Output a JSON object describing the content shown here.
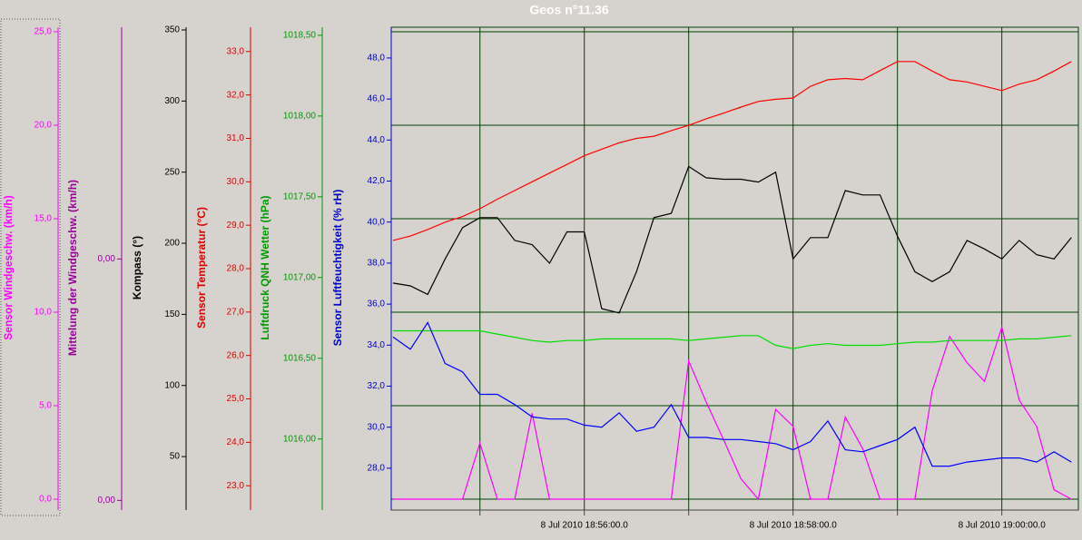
{
  "chart_data": {
    "type": "line",
    "title": "Geos n°11.36",
    "grid": true,
    "grid_axis": 0,
    "xlim": [
      "2010-07-08 18:54:09",
      "2010-07-08 19:00:44"
    ],
    "xticks": [
      {
        "value": "2010-07-08 18:55:00",
        "label": null
      },
      {
        "value": "2010-07-08 18:56:00",
        "label": "8 Jul 2010 18:56:00.0"
      },
      {
        "value": "2010-07-08 18:57:00",
        "label": null
      },
      {
        "value": "2010-07-08 18:58:00",
        "label": "8 Jul 2010 18:58:00.0"
      },
      {
        "value": "2010-07-08 18:59:00",
        "label": null
      },
      {
        "value": "2010-07-08 19:00:00",
        "label": "8 Jul 2010 19:00:00.0"
      }
    ],
    "x": [
      "2010-07-08 18:54:10",
      "2010-07-08 18:54:20",
      "2010-07-08 18:54:30",
      "2010-07-08 18:54:40",
      "2010-07-08 18:54:50",
      "2010-07-08 18:55:00",
      "2010-07-08 18:55:10",
      "2010-07-08 18:55:20",
      "2010-07-08 18:55:30",
      "2010-07-08 18:55:40",
      "2010-07-08 18:55:50",
      "2010-07-08 18:56:00",
      "2010-07-08 18:56:10",
      "2010-07-08 18:56:20",
      "2010-07-08 18:56:30",
      "2010-07-08 18:56:40",
      "2010-07-08 18:56:50",
      "2010-07-08 18:57:00",
      "2010-07-08 18:57:10",
      "2010-07-08 18:57:20",
      "2010-07-08 18:57:30",
      "2010-07-08 18:57:40",
      "2010-07-08 18:57:50",
      "2010-07-08 18:58:00",
      "2010-07-08 18:58:10",
      "2010-07-08 18:58:20",
      "2010-07-08 18:58:30",
      "2010-07-08 18:58:40",
      "2010-07-08 18:58:50",
      "2010-07-08 18:59:00",
      "2010-07-08 18:59:10",
      "2010-07-08 18:59:20",
      "2010-07-08 18:59:30",
      "2010-07-08 18:59:40",
      "2010-07-08 18:59:50",
      "2010-07-08 19:00:00",
      "2010-07-08 19:00:10",
      "2010-07-08 19:00:20",
      "2010-07-08 19:00:30",
      "2010-07-08 19:00:40"
    ],
    "axes": [
      {
        "name": "Sensor Windgeschw. (km/h)",
        "color": "#ff00ff",
        "ylim": [
          -0.58,
          25.24
        ],
        "yticks": [
          {
            "value": 0,
            "label": "0,0"
          },
          {
            "value": 5,
            "label": "5,0"
          },
          {
            "value": 10,
            "label": "10,0"
          },
          {
            "value": 15,
            "label": "15,0"
          },
          {
            "value": 20,
            "label": "20,0"
          },
          {
            "value": 25,
            "label": "25,0"
          }
        ]
      },
      {
        "name": "Mittelung der Windgeschw. (km/h)",
        "color": "#990099",
        "ylim": [
          -0.005,
          0.005
        ],
        "yticks": [
          {
            "value": -0.0048,
            "label": "0,00"
          },
          {
            "value": 0.0002,
            "label": "0,00"
          }
        ]
      },
      {
        "name": "Kompass (°)",
        "color": "#000000",
        "ylim": [
          12.4,
          351.9
        ],
        "yticks": [
          50,
          100,
          150,
          200,
          250,
          300,
          350
        ]
      },
      {
        "name": "Sensor Temperatur (°C)",
        "color": "#e00000",
        "ylim": [
          22.44,
          33.56
        ],
        "yticks": [
          {
            "value": 23,
            "label": "23,0"
          },
          {
            "value": 24,
            "label": "24,0"
          },
          {
            "value": 25,
            "label": "25,0"
          },
          {
            "value": 26,
            "label": "26,0"
          },
          {
            "value": 27,
            "label": "27,0"
          },
          {
            "value": 28,
            "label": "28,0"
          },
          {
            "value": 29,
            "label": "29,0"
          },
          {
            "value": 30,
            "label": "30,0"
          },
          {
            "value": 31,
            "label": "31,0"
          },
          {
            "value": 32,
            "label": "32,0"
          },
          {
            "value": 33,
            "label": "33,0"
          }
        ]
      },
      {
        "name": "Luftdruck QNH Wetter (hPa)",
        "color": "#009900",
        "ylim": [
          1015.56,
          1018.55
        ],
        "yticks": [
          {
            "value": 1016,
            "label": "1016,00"
          },
          {
            "value": 1016.5,
            "label": "1016,50"
          },
          {
            "value": 1017,
            "label": "1017,00"
          },
          {
            "value": 1017.5,
            "label": "1017,50"
          },
          {
            "value": 1018,
            "label": "1018,00"
          },
          {
            "value": 1018.5,
            "label": "1018,50"
          }
        ]
      },
      {
        "name": "Sensor Luftfeuchtigkeit (% rH)",
        "color": "#0000cc",
        "ylim": [
          25.96,
          49.5
        ],
        "yticks": [
          {
            "value": 28,
            "label": "28,0"
          },
          {
            "value": 30,
            "label": "30,0"
          },
          {
            "value": 32,
            "label": "32,0"
          },
          {
            "value": 34,
            "label": "34,0"
          },
          {
            "value": 36,
            "label": "36,0"
          },
          {
            "value": 38,
            "label": "38,0"
          },
          {
            "value": 40,
            "label": "40,0"
          },
          {
            "value": 42,
            "label": "42,0"
          },
          {
            "value": 44,
            "label": "44,0"
          },
          {
            "value": 46,
            "label": "46,0"
          },
          {
            "value": 48,
            "label": "48,0"
          }
        ]
      }
    ],
    "series": [
      {
        "axis": 0,
        "color": "#ff00ff",
        "values": [
          0,
          0,
          0,
          0,
          0,
          3.0,
          0,
          0,
          4.6,
          0,
          0,
          0,
          0,
          0,
          0,
          0,
          0,
          7.4,
          5.2,
          3.2,
          1.1,
          0,
          4.8,
          3.9,
          0,
          0,
          4.4,
          2.7,
          0,
          0,
          0,
          5.8,
          8.7,
          7.3,
          6.3,
          9.2,
          5.3,
          3.9,
          0.5,
          0
        ]
      },
      {
        "axis": 2,
        "color": "#000000",
        "values": [
          172,
          170,
          164,
          189,
          211,
          218,
          218,
          202,
          199,
          186,
          208,
          208,
          154,
          151,
          180,
          218,
          221,
          254,
          246,
          245,
          245,
          243,
          250,
          189,
          204,
          204,
          237,
          234,
          234,
          205,
          180,
          173,
          180,
          202,
          196,
          189,
          202,
          192,
          189,
          204
        ]
      },
      {
        "axis": 3,
        "color": "#ff0000",
        "values": [
          28.65,
          28.75,
          28.9,
          29.07,
          29.2,
          29.38,
          29.6,
          29.8,
          30.0,
          30.2,
          30.4,
          30.6,
          30.75,
          30.9,
          31.0,
          31.05,
          31.18,
          31.3,
          31.45,
          31.58,
          31.72,
          31.85,
          31.9,
          31.93,
          32.2,
          32.35,
          32.38,
          32.35,
          32.56,
          32.77,
          32.77,
          32.55,
          32.35,
          32.3,
          32.2,
          32.1,
          32.25,
          32.35,
          32.55,
          32.77
        ]
      },
      {
        "axis": 4,
        "color": "#00dd00",
        "values": [
          1016.67,
          1016.67,
          1016.67,
          1016.67,
          1016.67,
          1016.67,
          1016.65,
          1016.63,
          1016.61,
          1016.6,
          1016.61,
          1016.61,
          1016.62,
          1016.62,
          1016.62,
          1016.62,
          1016.62,
          1016.61,
          1016.62,
          1016.63,
          1016.64,
          1016.64,
          1016.58,
          1016.56,
          1016.58,
          1016.59,
          1016.58,
          1016.58,
          1016.58,
          1016.59,
          1016.6,
          1016.6,
          1016.61,
          1016.61,
          1016.61,
          1016.61,
          1016.62,
          1016.62,
          1016.63,
          1016.64
        ]
      },
      {
        "axis": 5,
        "color": "#0000ff",
        "values": [
          34.4,
          33.8,
          35.1,
          33.1,
          32.7,
          31.6,
          31.6,
          31.1,
          30.5,
          30.4,
          30.4,
          30.1,
          30.0,
          30.7,
          29.8,
          30.0,
          31.1,
          29.5,
          29.5,
          29.4,
          29.4,
          29.3,
          29.2,
          28.9,
          29.3,
          30.3,
          28.9,
          28.8,
          29.1,
          29.4,
          30.0,
          28.1,
          28.1,
          28.3,
          28.4,
          28.5,
          28.5,
          28.3,
          28.8,
          28.3
        ]
      }
    ]
  }
}
